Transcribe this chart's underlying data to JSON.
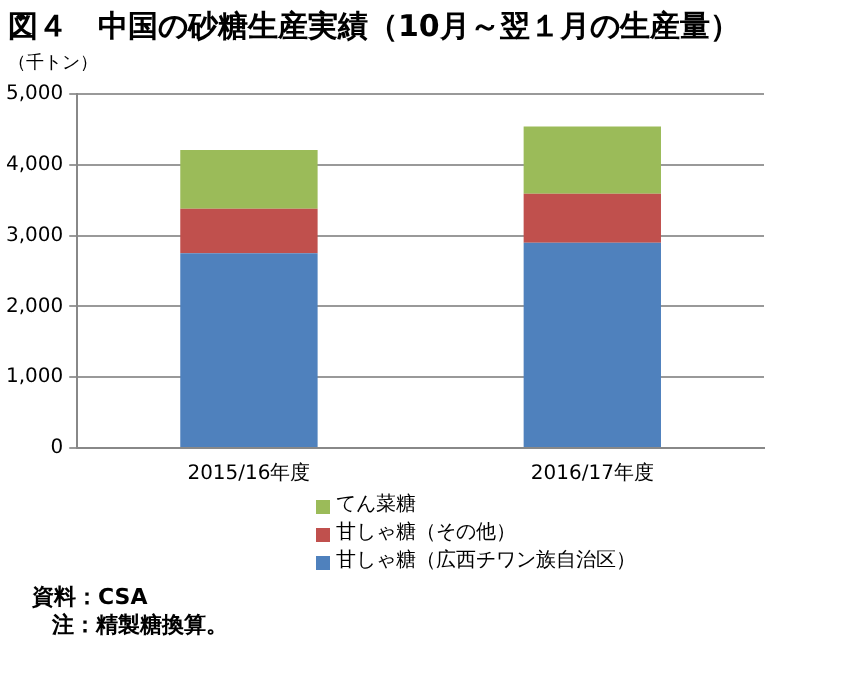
{
  "chart_data": {
    "type": "bar",
    "title": "図４　中国の砂糖生産実績（10月～翌１月の生産量）",
    "ylabel": "（千トン）",
    "categories": [
      "2015/16年度",
      "2016/17年度"
    ],
    "stacked": true,
    "series": [
      {
        "name": "甘しゃ糖（広西チワン族自治区）",
        "color": "#4f81bd",
        "values": [
          2750,
          2900
        ]
      },
      {
        "name": "甘しゃ糖（その他）",
        "color": "#c0504d",
        "values": [
          630,
          690
        ]
      },
      {
        "name": "てん菜糖",
        "color": "#9bbb59",
        "values": [
          830,
          950
        ]
      }
    ],
    "ylim": [
      0,
      5000
    ],
    "yticks": [
      {
        "value": 0,
        "label": "0"
      },
      {
        "value": 1000,
        "label": "1,000"
      },
      {
        "value": 2000,
        "label": "2,000"
      },
      {
        "value": 3000,
        "label": "3,000"
      },
      {
        "value": 4000,
        "label": "4,000"
      },
      {
        "value": 5000,
        "label": "5,000"
      }
    ],
    "grid": "y",
    "legend": "bottom",
    "annotations": [
      "資料：CSA",
      "注：精製糖換算。"
    ]
  }
}
